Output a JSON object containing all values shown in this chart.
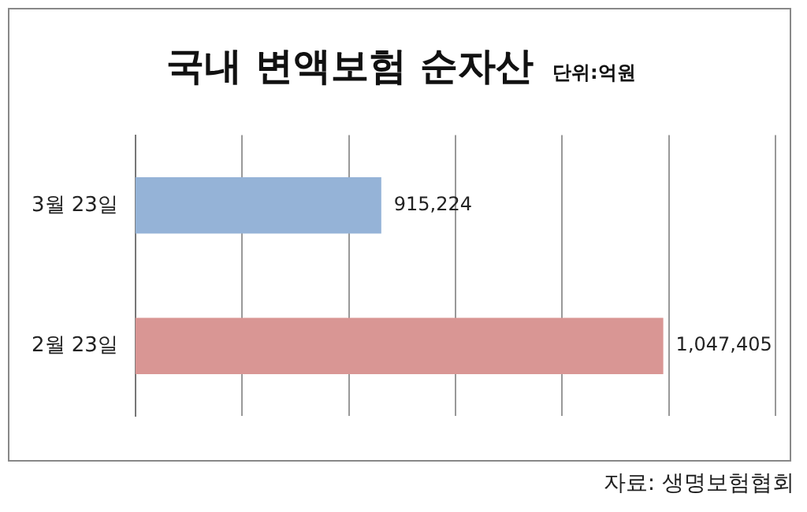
{
  "chart_data": {
    "type": "bar",
    "orientation": "horizontal",
    "title": "국내 변액보험 순자산",
    "subtitle": "단위:억원",
    "categories": [
      "3월 23일",
      "2월 23일"
    ],
    "values": [
      915224,
      1047405
    ],
    "colors": [
      "#95b3d7",
      "#d99694"
    ],
    "value_labels": [
      "915,224",
      "1,047,405"
    ],
    "xlim": [
      800000,
      1100000
    ],
    "xticks": [
      {
        "value": 800000,
        "label": null
      },
      {
        "value": 850000,
        "label": null
      },
      {
        "value": 900000,
        "label": null
      },
      {
        "value": 950000,
        "label": null
      },
      {
        "value": 1000000,
        "label": null
      },
      {
        "value": 1050000,
        "label": null
      },
      {
        "value": 1100000,
        "label": null
      }
    ],
    "tick_labels": "y",
    "grid": "x",
    "legend": false,
    "annotations": [
      "자료: 생명보험협회"
    ]
  }
}
